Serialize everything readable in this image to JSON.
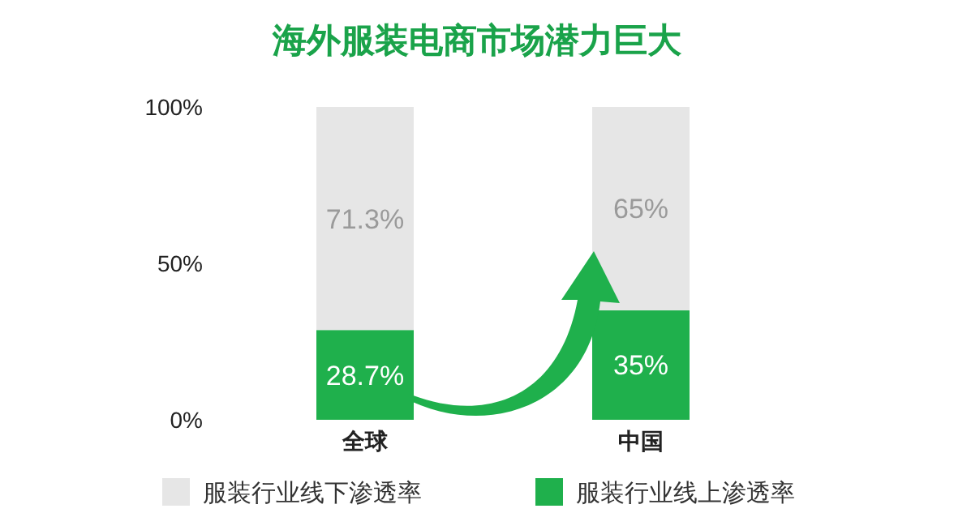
{
  "chart_data": {
    "type": "bar",
    "title": "海外服装电商市场潜力巨大",
    "stacked": true,
    "categories": [
      "全球",
      "中国"
    ],
    "series": [
      {
        "name": "服装行业线上渗透率",
        "color": "#1fb04c",
        "values": [
          28.7,
          35
        ],
        "value_labels": [
          "28.7%",
          "35%"
        ]
      },
      {
        "name": "服装行业线下渗透率",
        "color": "#e6e6e6",
        "values": [
          71.3,
          65
        ],
        "value_labels": [
          "71.3%",
          "65%"
        ]
      }
    ],
    "ylim": [
      0,
      100
    ],
    "yticks": [
      {
        "value": 0,
        "label": "0%"
      },
      {
        "value": 50,
        "label": "50%"
      },
      {
        "value": 100,
        "label": "100%"
      }
    ],
    "grid": false,
    "legend": "bottom"
  }
}
